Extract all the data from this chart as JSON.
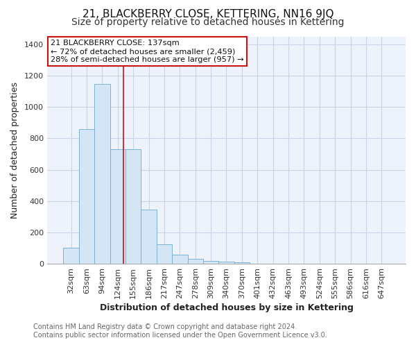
{
  "title": "21, BLACKBERRY CLOSE, KETTERING, NN16 9JQ",
  "subtitle": "Size of property relative to detached houses in Kettering",
  "xlabel": "Distribution of detached houses by size in Kettering",
  "ylabel": "Number of detached properties",
  "bar_labels": [
    "32sqm",
    "63sqm",
    "94sqm",
    "124sqm",
    "155sqm",
    "186sqm",
    "217sqm",
    "247sqm",
    "278sqm",
    "309sqm",
    "340sqm",
    "370sqm",
    "401sqm",
    "432sqm",
    "463sqm",
    "493sqm",
    "524sqm",
    "555sqm",
    "586sqm",
    "616sqm",
    "647sqm"
  ],
  "bar_values": [
    100,
    860,
    1145,
    730,
    730,
    345,
    125,
    60,
    32,
    20,
    13,
    10,
    0,
    0,
    0,
    0,
    0,
    0,
    0,
    0,
    0
  ],
  "bar_color": "#d4e6f5",
  "bar_edgecolor": "#7ab3d4",
  "vline_x": 3.35,
  "vline_color": "#cc1111",
  "ylim": [
    0,
    1450
  ],
  "yticks": [
    0,
    200,
    400,
    600,
    800,
    1000,
    1200,
    1400
  ],
  "annotation_title": "21 BLACKBERRY CLOSE: 137sqm",
  "annotation_line1": "← 72% of detached houses are smaller (2,459)",
  "annotation_line2": "28% of semi-detached houses are larger (957) →",
  "annotation_box_facecolor": "#ffffff",
  "annotation_box_edgecolor": "#cc1111",
  "footer_line1": "Contains HM Land Registry data © Crown copyright and database right 2024.",
  "footer_line2": "Contains public sector information licensed under the Open Government Licence v3.0.",
  "plot_bg_color": "#edf2fb",
  "fig_bg_color": "#ffffff",
  "grid_color": "#c8d4e8",
  "title_fontsize": 11,
  "subtitle_fontsize": 10,
  "axis_label_fontsize": 9,
  "tick_fontsize": 8,
  "footer_fontsize": 7
}
